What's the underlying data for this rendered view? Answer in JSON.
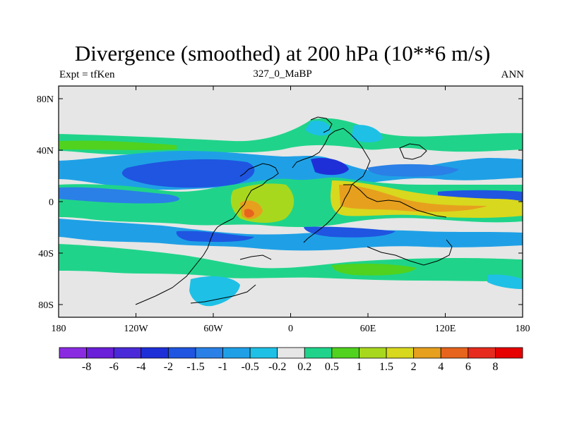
{
  "title": "Divergence (smoothed) at 200 hPa (10**6 m/s)",
  "left_subtitle": "Expt = tfKen",
  "center_subtitle": "327_0_MaBP",
  "right_subtitle": "ANN",
  "axes": {
    "x_ticks": [
      "180",
      "120W",
      "60W",
      "0",
      "60E",
      "120E",
      "180"
    ],
    "y_ticks": [
      "80N",
      "40N",
      "0",
      "40S",
      "80S"
    ]
  },
  "colorbar": {
    "labels": [
      "-8",
      "-6",
      "-4",
      "-2",
      "-1.5",
      "-1",
      "-0.5",
      "-0.2",
      "0.2",
      "0.5",
      "1",
      "1.5",
      "2",
      "4",
      "6",
      "8"
    ],
    "colors": [
      "#8a2be2",
      "#6a1fd8",
      "#4a2ad8",
      "#1f2fd8",
      "#1f55e0",
      "#2a80e6",
      "#1fa0e6",
      "#1ec0e6",
      "#e6e6e6",
      "#1fd48a",
      "#50d21e",
      "#a8d81e",
      "#d8d81e",
      "#e6a01e",
      "#e6641e",
      "#e62a1e",
      "#e60000"
    ]
  }
}
